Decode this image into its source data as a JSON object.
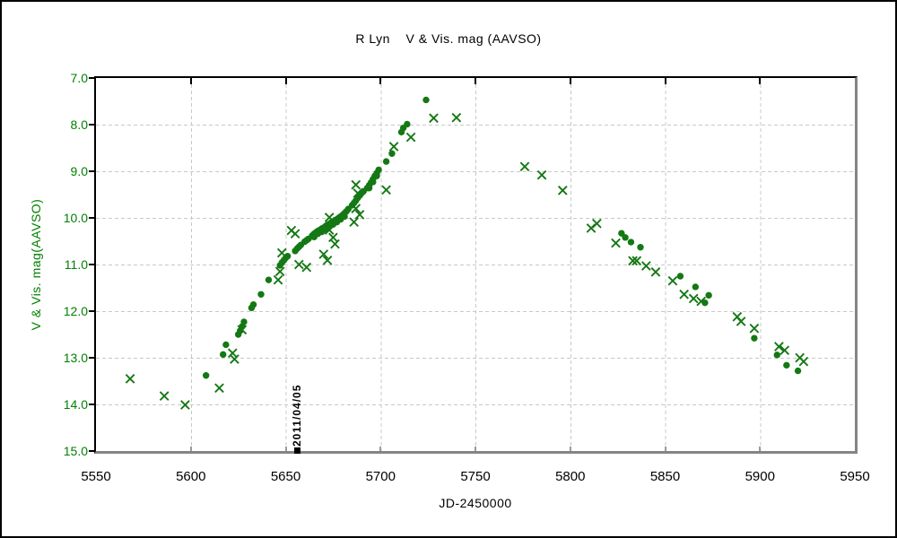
{
  "title": "R Lyn    V & Vis. mag (AAVSO)",
  "axes": {
    "x_label": "JD-2450000",
    "y_label": "V & Vis. mag(AAVSO)"
  },
  "colors": {
    "series_green": "#147814",
    "axis_label_green": "#008000",
    "grid_gray": "#c8c8c8",
    "frame_shadow_gray": "#848484",
    "annotation_black": "#000000"
  },
  "chart_data": {
    "type": "scatter",
    "title": "R Lyn    V & Vis. mag (AAVSO)",
    "xlabel": "JD-2450000",
    "ylabel": "V & Vis. mag(AAVSO)",
    "xlim": [
      5550,
      5950
    ],
    "ylim": [
      15.0,
      7.0
    ],
    "y_inverted": true,
    "grid": "dashed",
    "legend": "none",
    "x_ticks": [
      {
        "v": 5550,
        "label": "5550"
      },
      {
        "v": 5600,
        "label": "5600"
      },
      {
        "v": 5650,
        "label": "5650"
      },
      {
        "v": 5700,
        "label": "5700"
      },
      {
        "v": 5750,
        "label": "5750"
      },
      {
        "v": 5800,
        "label": "5800"
      },
      {
        "v": 5850,
        "label": "5850"
      },
      {
        "v": 5900,
        "label": "5900"
      },
      {
        "v": 5950,
        "label": "5950"
      }
    ],
    "y_ticks": [
      {
        "v": 7,
        "label": "7.0"
      },
      {
        "v": 8,
        "label": "8.0"
      },
      {
        "v": 9,
        "label": "9.0"
      },
      {
        "v": 10,
        "label": "10.0"
      },
      {
        "v": 11,
        "label": "11.0"
      },
      {
        "v": 12,
        "label": "12.0"
      },
      {
        "v": 13,
        "label": "13.0"
      },
      {
        "v": 14,
        "label": "14.0"
      },
      {
        "v": 15,
        "label": "15.0"
      }
    ],
    "x_gridlines": [
      5600,
      5650,
      5700,
      5750,
      5800,
      5850,
      5900
    ],
    "y_gridlines": [
      8,
      9,
      10,
      11,
      12,
      13,
      14
    ],
    "annotation": {
      "text": "2011/04/05",
      "jd": 5656,
      "mag": 14.95,
      "marker": "filled-square",
      "color": "#000000"
    },
    "series": [
      {
        "name": "V (filled circle)",
        "marker": "circle",
        "color": "#147814",
        "points": [
          [
            5608,
            13.38
          ],
          [
            5617,
            12.93
          ],
          [
            5618.5,
            12.72
          ],
          [
            5625,
            12.5
          ],
          [
            5626,
            12.42
          ],
          [
            5627,
            12.33
          ],
          [
            5628,
            12.23
          ],
          [
            5632,
            11.93
          ],
          [
            5633,
            11.86
          ],
          [
            5637,
            11.64
          ],
          [
            5641,
            11.33
          ],
          [
            5647,
            11.02
          ],
          [
            5648,
            10.96
          ],
          [
            5649,
            10.91
          ],
          [
            5650,
            10.86
          ],
          [
            5651,
            10.82
          ],
          [
            5655,
            10.71
          ],
          [
            5656,
            10.66
          ],
          [
            5657,
            10.62
          ],
          [
            5658,
            10.58
          ],
          [
            5660,
            10.51
          ],
          [
            5661,
            10.48
          ],
          [
            5662,
            10.45
          ],
          [
            5664,
            10.38
          ],
          [
            5665,
            10.34
          ],
          [
            5665,
            10.41
          ],
          [
            5666,
            10.31
          ],
          [
            5667,
            10.28
          ],
          [
            5667,
            10.34
          ],
          [
            5668,
            10.26
          ],
          [
            5669,
            10.23
          ],
          [
            5669,
            10.3
          ],
          [
            5670,
            10.21
          ],
          [
            5671,
            10.18
          ],
          [
            5671,
            10.25
          ],
          [
            5672,
            10.15
          ],
          [
            5673,
            10.13
          ],
          [
            5673,
            10.19
          ],
          [
            5674,
            10.1
          ],
          [
            5675,
            10.08
          ],
          [
            5675,
            10.14
          ],
          [
            5676,
            10.05
          ],
          [
            5677,
            10.03
          ],
          [
            5677,
            10.09
          ],
          [
            5678,
            10.0
          ],
          [
            5679,
            9.97
          ],
          [
            5679,
            10.03
          ],
          [
            5680,
            9.94
          ],
          [
            5681,
            9.9
          ],
          [
            5681,
            9.97
          ],
          [
            5682,
            9.86
          ],
          [
            5683,
            9.81
          ],
          [
            5685,
            9.73
          ],
          [
            5686,
            9.68
          ],
          [
            5687,
            9.63
          ],
          [
            5688,
            9.57
          ],
          [
            5689,
            9.52
          ],
          [
            5690,
            9.47
          ],
          [
            5691,
            9.43
          ],
          [
            5693,
            9.36
          ],
          [
            5694,
            9.3
          ],
          [
            5694,
            9.36
          ],
          [
            5695,
            9.24
          ],
          [
            5696,
            9.17
          ],
          [
            5696,
            9.23
          ],
          [
            5697,
            9.1
          ],
          [
            5698,
            9.04
          ],
          [
            5698,
            9.1
          ],
          [
            5699,
            8.97
          ],
          [
            5703,
            8.79
          ],
          [
            5706,
            8.62
          ],
          [
            5711,
            8.16
          ],
          [
            5712,
            8.07
          ],
          [
            5714,
            7.99
          ],
          [
            5724,
            7.47
          ],
          [
            5827,
            10.33
          ],
          [
            5829,
            10.42
          ],
          [
            5832,
            10.52
          ],
          [
            5837,
            10.63
          ],
          [
            5858,
            11.25
          ],
          [
            5866,
            11.48
          ],
          [
            5871,
            11.82
          ],
          [
            5873,
            11.66
          ],
          [
            5897,
            12.58
          ],
          [
            5909,
            12.94
          ],
          [
            5914,
            13.16
          ],
          [
            5920,
            13.28
          ]
        ]
      },
      {
        "name": "Vis. (cross)",
        "marker": "x",
        "color": "#147814",
        "points": [
          [
            5568,
            13.45
          ],
          [
            5586,
            13.82
          ],
          [
            5597,
            14.01
          ],
          [
            5615,
            13.65
          ],
          [
            5622,
            12.9
          ],
          [
            5623,
            13.03
          ],
          [
            5627,
            12.4
          ],
          [
            5646,
            11.33
          ],
          [
            5647,
            11.15
          ],
          [
            5648,
            10.75
          ],
          [
            5653,
            10.27
          ],
          [
            5655,
            10.34
          ],
          [
            5657,
            11.0
          ],
          [
            5661,
            11.06
          ],
          [
            5670,
            10.78
          ],
          [
            5672,
            10.91
          ],
          [
            5673,
            9.99
          ],
          [
            5673,
            10.26
          ],
          [
            5675,
            10.42
          ],
          [
            5676,
            10.56
          ],
          [
            5686,
            10.09
          ],
          [
            5687,
            9.8
          ],
          [
            5689,
            9.93
          ],
          [
            5687,
            9.29
          ],
          [
            5688,
            9.47
          ],
          [
            5703,
            9.4
          ],
          [
            5707,
            8.47
          ],
          [
            5716,
            8.27
          ],
          [
            5728,
            7.86
          ],
          [
            5740,
            7.85
          ],
          [
            5776,
            8.9
          ],
          [
            5785,
            9.08
          ],
          [
            5796,
            9.41
          ],
          [
            5811,
            10.22
          ],
          [
            5814,
            10.12
          ],
          [
            5824,
            10.54
          ],
          [
            5833,
            10.92
          ],
          [
            5835,
            10.92
          ],
          [
            5840,
            11.03
          ],
          [
            5845,
            11.16
          ],
          [
            5854,
            11.35
          ],
          [
            5860,
            11.64
          ],
          [
            5865,
            11.73
          ],
          [
            5869,
            11.79
          ],
          [
            5888,
            12.12
          ],
          [
            5890,
            12.22
          ],
          [
            5897,
            12.37
          ],
          [
            5910,
            12.76
          ],
          [
            5913,
            12.84
          ],
          [
            5921,
            13.0
          ],
          [
            5923,
            13.08
          ]
        ]
      }
    ]
  }
}
